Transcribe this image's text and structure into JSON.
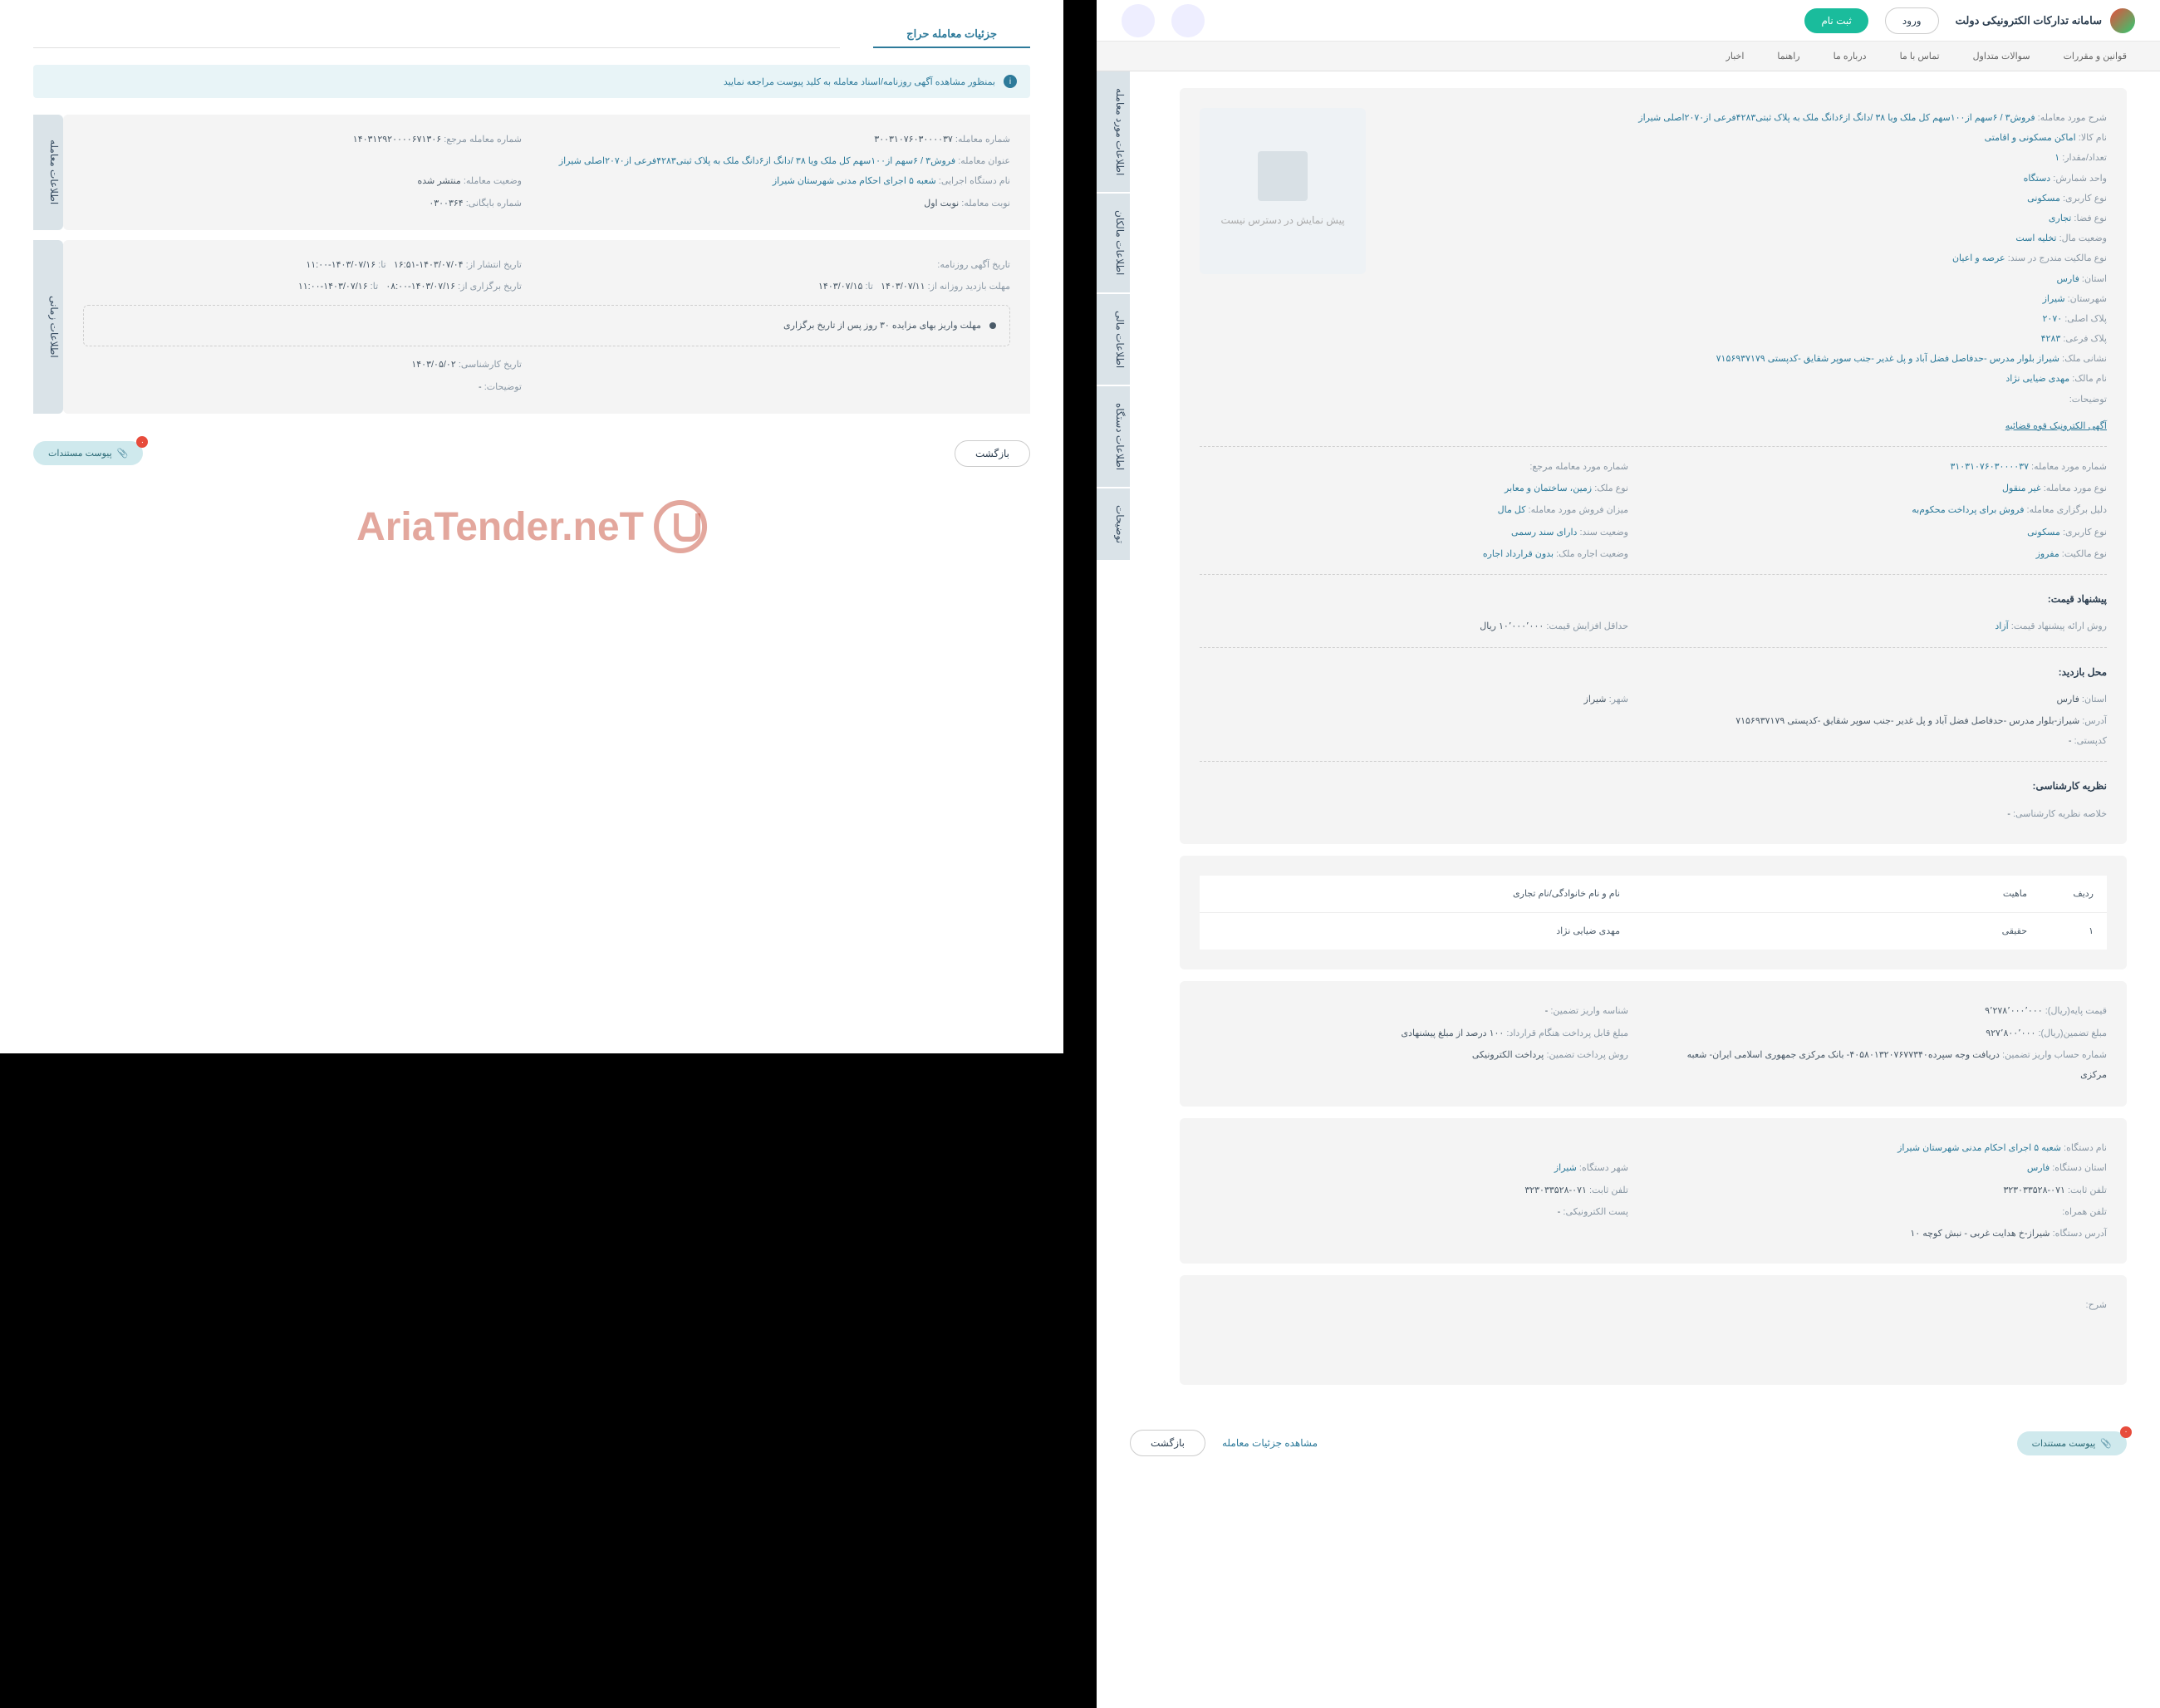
{
  "header": {
    "site_title": "سامانه تدارکات الکترونیکی دولت",
    "login": "ورود",
    "register": "ثبت نام"
  },
  "nav": [
    "قوانین و مقررات",
    "سوالات متداول",
    "تماس با ما",
    "درباره ما",
    "راهنما",
    "اخبار"
  ],
  "right": {
    "tabs": [
      "اطلاعات مورد معامله",
      "اطلاعات مالکان",
      "اطلاعات مالی",
      "اطلاعات دستگاه",
      "توضیحات"
    ],
    "no_preview": "پیش نمایش در دسترس نیست",
    "detail_lines": [
      {
        "label": "شرح مورد معامله:",
        "value": "فروش۳ / ۶سهم از۱۰۰سهم کل ملک ویا ۳۸ /دانگ از۶دانگ ملک به پلاک ثبتی۴۲۸۳فرعی از۲۰۷۰اصلی شیراز"
      },
      {
        "label": "نام کالا:",
        "value": "اماکن مسکونی و اقامتی"
      },
      {
        "label": "تعداد/مقدار:",
        "value": "۱"
      },
      {
        "label": "واحد شمارش:",
        "value": "دستگاه"
      },
      {
        "label": "نوع کاربری:",
        "value": "مسکونی"
      },
      {
        "label": "نوع فضا:",
        "value": "تجاری"
      },
      {
        "label": "وضعیت مال:",
        "value": "تخلیه است"
      },
      {
        "label": "نوع مالکیت مندرج در سند:",
        "value": "عرصه و اعیان"
      },
      {
        "label": "استان:",
        "value": "فارس"
      },
      {
        "label": "شهرستان:",
        "value": "شیراز"
      },
      {
        "label": "پلاک اصلی:",
        "value": "۲۰۷۰"
      },
      {
        "label": "پلاک فرعی:",
        "value": "۴۲۸۳"
      },
      {
        "label": "نشانی ملک:",
        "value": "شیراز بلوار مدرس -حدفاصل فضل آباد و پل غدیر -جنب سوپر شقایق -کدپستی ۷۱۵۶۹۳۷۱۷۹"
      },
      {
        "label": "نام مالک:",
        "value": "مهدی ضیایی نژاد"
      },
      {
        "label": "توضیحات:",
        "value": ""
      }
    ],
    "court_link": "آگهی الکترونیک قوه قضائیه",
    "grid": {
      "r1": [
        {
          "label": "شماره مورد معامله:",
          "value": "۳۱۰۳۱۰۷۶۰۳۰۰۰۰۳۷"
        },
        {
          "label": "شماره مورد معامله مرجع:",
          "value": ""
        }
      ],
      "r2": [
        {
          "label": "نوع مورد معامله:",
          "value": "غیر منقول"
        },
        {
          "label": "نوع ملک:",
          "value": "زمین، ساختمان و معابر"
        }
      ],
      "r3": [
        {
          "label": "دلیل برگزاری معامله:",
          "value": "فروش برای پرداخت محکوم‌به"
        },
        {
          "label": "میزان فروش مورد معامله:",
          "value": "کل مال"
        }
      ],
      "r4": [
        {
          "label": "نوع کاربری:",
          "value": "مسکونی"
        },
        {
          "label": "وضعیت سند:",
          "value": "دارای سند رسمی"
        }
      ],
      "r5": [
        {
          "label": "نوع مالکیت:",
          "value": "مفروز"
        },
        {
          "label": "وضعیت اجاره ملک:",
          "value": "بدون قرارداد اجاره"
        }
      ]
    },
    "price_section": {
      "heading": "پیشنهاد قیمت:",
      "r1": {
        "label": "روش ارائه پیشنهاد قیمت:",
        "value": "آزاد"
      },
      "r2": {
        "label": "حداقل افزایش قیمت:",
        "value": "۱۰٬۰۰۰٬۰۰۰ ریال"
      }
    },
    "visit_section": {
      "heading": "محل بازدید:",
      "r1": {
        "label": "استان:",
        "value": "فارس"
      },
      "r2": {
        "label": "شهر:",
        "value": "شیراز"
      },
      "addr": {
        "label": "آدرس:",
        "value": "شیراز-بلوار مدرس -حدفاصل فضل آباد و پل غدیر -جنب سوپر شقایق -کدپستی ۷۱۵۶۹۳۷۱۷۹"
      },
      "postal": {
        "label": "کدپستی:",
        "value": "-"
      }
    },
    "expert_section": {
      "heading": "نظریه کارشناسی:",
      "summary": {
        "label": "خلاصه نظریه کارشناسی:",
        "value": "-"
      }
    },
    "owners": {
      "cols": [
        "ردیف",
        "ماهیت",
        "نام و نام خانوادگی/نام تجاری"
      ],
      "row": [
        "۱",
        "حقیقی",
        "مهدی ضیایی نژاد"
      ]
    },
    "financial": {
      "r1": [
        {
          "label": "قیمت پایه(ریال):",
          "value": "۹٬۲۷۸٬۰۰۰٬۰۰۰"
        },
        {
          "label": "شناسه واریز تضمین:",
          "value": "-"
        }
      ],
      "r2": [
        {
          "label": "مبلغ تضمین(ریال):",
          "value": "۹۲۷٬۸۰۰٬۰۰۰"
        },
        {
          "label": "مبلغ قابل پرداخت هنگام قرارداد:",
          "value": "۱۰۰ درصد از مبلغ پیشنهادی"
        }
      ],
      "r3": [
        {
          "label": "شماره حساب واریز تضمین:",
          "value": "دریافت وجه سپرده۴۰۵۸۰۱۳۲۰۷۶۷۷۳۴۰- بانک مرکزی جمهوری اسلامی ایران- شعبه مرکزی"
        },
        {
          "label": "روش پرداخت تضمین:",
          "value": "پرداخت الکترونیکی"
        }
      ]
    },
    "org": {
      "name": {
        "label": "نام دستگاه:",
        "value": "شعبه ۵ اجرای احکام مدنی شهرستان شیراز"
      },
      "r1": [
        {
          "label": "استان دستگاه:",
          "value": "فارس"
        },
        {
          "label": "شهر دستگاه:",
          "value": "شیراز"
        }
      ],
      "r2": [
        {
          "label": "تلفن ثابت:",
          "value": "۰۷۱-۳۲۳۰۳۳۵۲۸"
        },
        {
          "label": "تلفن ثابت:",
          "value": "۰۷۱-۳۲۳۰۳۳۵۲۸"
        }
      ],
      "r3": [
        {
          "label": "تلفن همراه:",
          "value": ""
        },
        {
          "label": "پست الکترونیکی:",
          "value": "-"
        }
      ],
      "addr": {
        "label": "آدرس دستگاه:",
        "value": "شیراز-خ هدایت غربی - نبش کوچه ۱۰"
      }
    },
    "desc": {
      "label": "شرح:",
      "value": ""
    },
    "actions": {
      "view_details": "مشاهده جزئیات معامله",
      "back": "بازگشت",
      "attachments": "پیوست مستندات",
      "badge": "۰"
    }
  },
  "left": {
    "title": "جزئیات معامله حراج",
    "alert": "بمنظور مشاهده آگهی روزنامه/اسناد معامله به کلید پیوست مراجعه نمایید",
    "tabs": [
      "اطلاعات معامله",
      "اطلاعات زمانی"
    ],
    "trans": {
      "r1": [
        {
          "label": "شماره معامله:",
          "value": "۳۰۰۳۱۰۷۶۰۳۰۰۰۰۳۷"
        },
        {
          "label": "شماره معامله مرجع:",
          "value": "۱۴۰۳۱۲۹۲۰۰۰۰۶۷۱۳۰۶"
        }
      ],
      "subject": {
        "label": "عنوان معامله:",
        "value": "فروش۳ / ۶سهم از۱۰۰سهم کل ملک ویا ۳۸ /دانگ از۶دانگ ملک به پلاک ثبتی۴۲۸۳فرعی از۲۰۷۰اصلی شیراز"
      },
      "r2": [
        {
          "label": "نام دستگاه اجرایی:",
          "value": "شعبه ۵ اجرای احکام مدنی شهرستان شیراز"
        },
        {
          "label": "وضعیت معامله:",
          "value": "منتشر شده"
        }
      ],
      "r3": [
        {
          "label": "نوبت معامله:",
          "value": "نوبت اول"
        },
        {
          "label": "شماره بایگانی:",
          "value": "۰۳۰۰۳۶۴"
        }
      ]
    },
    "time": {
      "r1": [
        {
          "label": "تاریخ آگهی روزنامه:",
          "value": ""
        },
        {
          "label": "تاریخ انتشار از:",
          "value": "۱۴۰۳/۰۷/۰۴-۱۶:۵۱"
        },
        {
          "label": "تا:",
          "value": "۱۴۰۳/۰۷/۱۶-۱۱:۰۰"
        }
      ],
      "r2": [
        {
          "label": "مهلت بازدید روزانه از:",
          "value": "۱۴۰۳/۰۷/۱۱"
        },
        {
          "label": "تا:",
          "value": "۱۴۰۳/۰۷/۱۵"
        },
        {
          "label": "تاریخ برگزاری از:",
          "value": "۱۴۰۳/۰۷/۱۶-۰۸:۰۰"
        },
        {
          "label": "تا:",
          "value": "۱۴۰۳/۰۷/۱۶-۱۱:۰۰"
        }
      ],
      "note": "مهلت واریز بهای مزایده ۳۰ روز پس از تاریخ برگزاری",
      "r3": [
        {
          "label": "تاریخ کارشناسی:",
          "value": "۱۴۰۳/۰۵/۰۲"
        }
      ],
      "r4": [
        {
          "label": "توضیحات:",
          "value": "-"
        }
      ]
    },
    "actions": {
      "back": "بازگشت",
      "attachments": "پیوست مستندات",
      "badge": "۰"
    }
  },
  "watermark": "AriaTender.neT"
}
